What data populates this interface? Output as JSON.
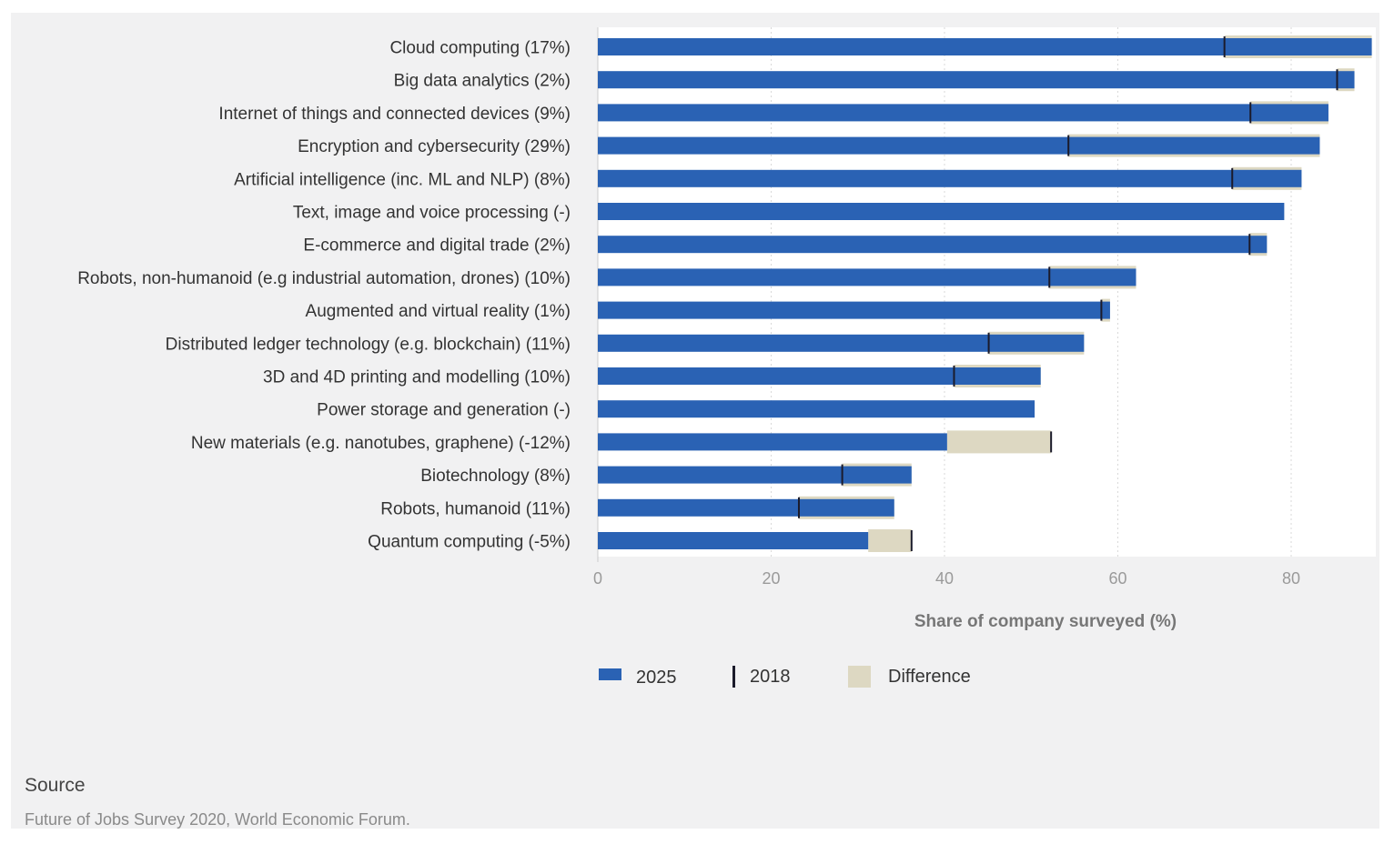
{
  "chart_data": {
    "type": "bar",
    "orientation": "horizontal",
    "categories": [
      "Cloud computing (17%)",
      "Big data analytics (2%)",
      "Internet of things and connected devices (9%)",
      "Encryption and cybersecurity (29%)",
      "Artificial intelligence (inc. ML and NLP) (8%)",
      "Text, image and voice processing (-)",
      "E-commerce and digital trade (2%)",
      "Robots, non-humanoid (e.g industrial automation, drones) (10%)",
      "Augmented and virtual reality (1%)",
      "Distributed ledger technology (e.g. blockchain) (11%)",
      "3D and 4D printing and modelling (10%)",
      "Power storage and generation (-)",
      "New materials (e.g. nanotubes, graphene) (-12%)",
      "Biotechnology (8%)",
      "Robots, humanoid (11%)",
      "Quantum computing (-5%)"
    ],
    "series": [
      {
        "name": "2025",
        "values": [
          89.3,
          87.3,
          84.3,
          83.3,
          81.2,
          79.2,
          77.2,
          62.1,
          59.1,
          56.1,
          51.1,
          50.4,
          40.3,
          36.2,
          34.2,
          31.2
        ]
      },
      {
        "name": "2018",
        "values": [
          72.3,
          85.3,
          75.3,
          54.3,
          73.2,
          null,
          75.2,
          52.1,
          58.1,
          45.1,
          41.1,
          null,
          52.3,
          28.2,
          23.2,
          36.2
        ]
      }
    ],
    "legend": [
      "2025",
      "2018",
      "Difference"
    ],
    "xlabel": "Share of company surveyed (%)",
    "xticks": [
      0,
      20,
      40,
      60,
      80
    ],
    "xlim": [
      0,
      90
    ],
    "grid": "vertical dotted",
    "legend_position": "bottom",
    "colors": {
      "2025": "#2a62b4",
      "2018": "#1b1b2b",
      "Difference": "#ddd8c2"
    }
  },
  "source": {
    "title": "Source",
    "text": "Future of Jobs Survey 2020, World Economic Forum."
  }
}
